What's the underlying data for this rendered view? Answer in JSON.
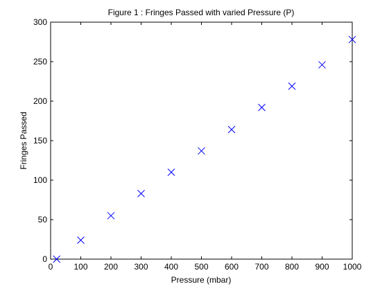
{
  "chart_data": {
    "type": "scatter",
    "title": "Figure 1 : Fringes Passed with varied Pressure (P)",
    "xlabel": "Pressure (mbar)",
    "ylabel": "Fringes Passed",
    "xlim": [
      0,
      1000
    ],
    "ylim": [
      0,
      300
    ],
    "xticks": [
      0,
      100,
      200,
      300,
      400,
      500,
      600,
      700,
      800,
      900,
      1000
    ],
    "yticks": [
      0,
      50,
      100,
      150,
      200,
      250,
      300
    ],
    "grid": false,
    "marker": "x",
    "marker_color": "#0000ff",
    "series": [
      {
        "x": [
          20,
          100,
          200,
          300,
          400,
          500,
          600,
          700,
          800,
          900,
          1000
        ],
        "y": [
          0,
          24,
          55,
          83,
          110,
          137,
          164,
          192,
          219,
          246,
          278
        ]
      }
    ]
  }
}
